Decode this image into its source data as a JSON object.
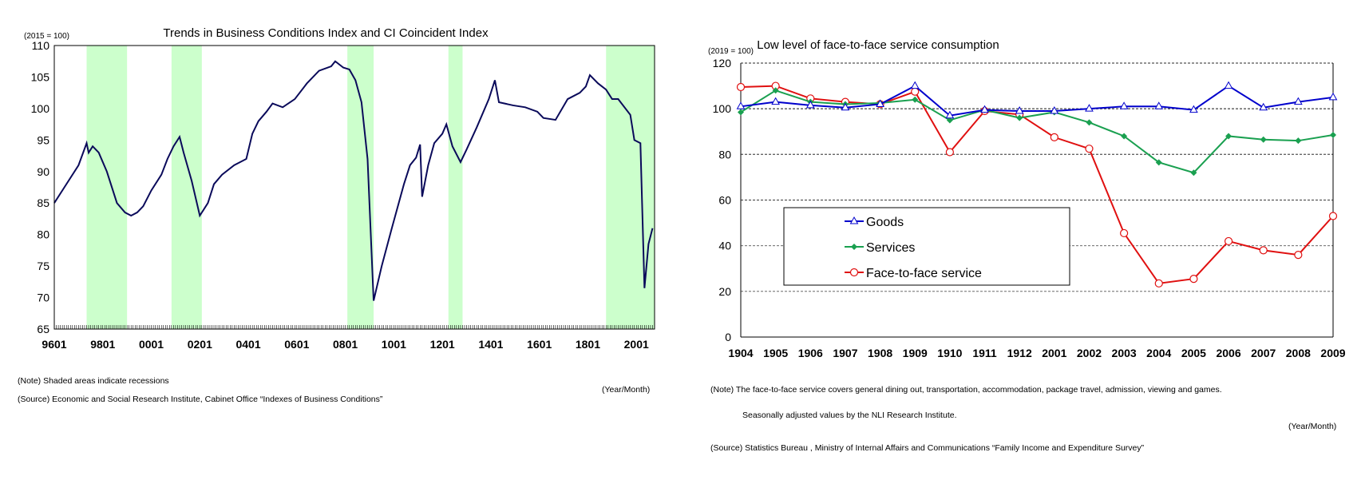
{
  "chart_data": [
    {
      "type": "line",
      "title": "Trends in Business Conditions Index and CI Coincident Index",
      "unit_label": "(2015 = 100)",
      "xlabel": "(Year/Month)",
      "ylim": [
        65,
        110
      ],
      "yticks": [
        65,
        70,
        75,
        80,
        85,
        90,
        95,
        100,
        105,
        110
      ],
      "xticks": [
        "9601",
        "9801",
        "0001",
        "0201",
        "0401",
        "0601",
        "0801",
        "1001",
        "1201",
        "1401",
        "1601",
        "1801",
        "2001"
      ],
      "x_range": [
        "1996-01",
        "2020-10"
      ],
      "line_color": "#0a0a5a",
      "shade_color": "#ccffcc",
      "recessions": [
        [
          "1997-05",
          "1999-01"
        ],
        [
          "2000-11",
          "2002-02"
        ],
        [
          "2008-02",
          "2009-03"
        ],
        [
          "2012-04",
          "2012-11"
        ],
        [
          "2018-10",
          "2020-10"
        ]
      ],
      "series": [
        {
          "points": [
            [
              "1996-01",
              85
            ],
            [
              "1996-06",
              87.5
            ],
            [
              "1997-01",
              91
            ],
            [
              "1997-05",
              94.5
            ],
            [
              "1997-06",
              93
            ],
            [
              "1997-08",
              94
            ],
            [
              "1997-11",
              93
            ],
            [
              "1998-03",
              90
            ],
            [
              "1998-08",
              85
            ],
            [
              "1998-12",
              83.5
            ],
            [
              "1999-03",
              83
            ],
            [
              "1999-06",
              83.5
            ],
            [
              "1999-09",
              84.5
            ],
            [
              "2000-01",
              87
            ],
            [
              "2000-06",
              89.5
            ],
            [
              "2000-09",
              92
            ],
            [
              "2000-12",
              94
            ],
            [
              "2001-03",
              95.5
            ],
            [
              "2001-05",
              93
            ],
            [
              "2001-09",
              88.5
            ],
            [
              "2002-01",
              83
            ],
            [
              "2002-05",
              85
            ],
            [
              "2002-08",
              88
            ],
            [
              "2002-12",
              89.5
            ],
            [
              "2003-06",
              91
            ],
            [
              "2003-12",
              92
            ],
            [
              "2004-03",
              96
            ],
            [
              "2004-06",
              98
            ],
            [
              "2004-10",
              99.5
            ],
            [
              "2005-01",
              100.8
            ],
            [
              "2005-06",
              100.2
            ],
            [
              "2005-12",
              101.5
            ],
            [
              "2006-06",
              104
            ],
            [
              "2006-12",
              106
            ],
            [
              "2007-06",
              106.7
            ],
            [
              "2007-08",
              107.5
            ],
            [
              "2007-12",
              106.5
            ],
            [
              "2008-03",
              106.2
            ],
            [
              "2008-06",
              104.5
            ],
            [
              "2008-09",
              101
            ],
            [
              "2008-12",
              92
            ],
            [
              "2009-03",
              69.5
            ],
            [
              "2009-07",
              75
            ],
            [
              "2009-12",
              81
            ],
            [
              "2010-06",
              88
            ],
            [
              "2010-09",
              91
            ],
            [
              "2010-12",
              92.2
            ],
            [
              "2011-02",
              94.3
            ],
            [
              "2011-03",
              86
            ],
            [
              "2011-06",
              91
            ],
            [
              "2011-09",
              94.5
            ],
            [
              "2012-01",
              96
            ],
            [
              "2012-03",
              97.5
            ],
            [
              "2012-06",
              94
            ],
            [
              "2012-10",
              91.5
            ],
            [
              "2013-01",
              93.5
            ],
            [
              "2013-06",
              97
            ],
            [
              "2013-12",
              101.5
            ],
            [
              "2014-03",
              104.5
            ],
            [
              "2014-05",
              101
            ],
            [
              "2014-12",
              100.5
            ],
            [
              "2015-06",
              100.2
            ],
            [
              "2015-12",
              99.5
            ],
            [
              "2016-03",
              98.5
            ],
            [
              "2016-09",
              98.2
            ],
            [
              "2017-03",
              101.5
            ],
            [
              "2017-09",
              102.5
            ],
            [
              "2017-12",
              103.5
            ],
            [
              "2018-02",
              105.3
            ],
            [
              "2018-06",
              104
            ],
            [
              "2018-10",
              103
            ],
            [
              "2019-01",
              101.5
            ],
            [
              "2019-04",
              101.5
            ],
            [
              "2019-10",
              99
            ],
            [
              "2019-12",
              95
            ],
            [
              "2020-03",
              94.5
            ],
            [
              "2020-05",
              71.5
            ],
            [
              "2020-07",
              78.5
            ],
            [
              "2020-09",
              81
            ]
          ]
        }
      ],
      "notes": [
        "(Note) Shaded areas indicate recessions",
        "(Source) Economic and Social Research Institute, Cabinet Office “Indexes of Business Conditions”"
      ]
    },
    {
      "type": "line",
      "title": "Low level of face-to-face service consumption",
      "unit_label": "(2019 = 100)",
      "xlabel": "(Year/Month)",
      "ylim": [
        0,
        120
      ],
      "yticks": [
        0,
        20,
        40,
        60,
        80,
        100,
        120
      ],
      "grid": true,
      "legend": "center-left",
      "categories": [
        "1904",
        "1905",
        "1906",
        "1907",
        "1908",
        "1909",
        "1910",
        "1911",
        "1912",
        "2001",
        "2002",
        "2003",
        "2004",
        "2005",
        "2006",
        "2007",
        "2008",
        "2009"
      ],
      "series": [
        {
          "name": "Goods",
          "color": "#0000cc",
          "marker": "triangle-open",
          "values": [
            101,
            103,
            101.5,
            100.5,
            102,
            110,
            97,
            99.5,
            99,
            99,
            100,
            101,
            101,
            99.5,
            110,
            100.5,
            103,
            105
          ]
        },
        {
          "name": "Services",
          "color": "#1aa050",
          "marker": "diamond-filled",
          "values": [
            98.5,
            108,
            103,
            102,
            102.5,
            104,
            95,
            99.5,
            96,
            98.5,
            94,
            88,
            76.5,
            72,
            88,
            86.5,
            86,
            88.5
          ]
        },
        {
          "name": "Face-to-face service",
          "color": "#e01010",
          "marker": "circle-open",
          "values": [
            109.5,
            110,
            104.5,
            103,
            102,
            107.5,
            81,
            99,
            97.5,
            87.5,
            82.5,
            45.5,
            23.5,
            25.5,
            42,
            38,
            36,
            53
          ]
        }
      ],
      "notes": [
        "(Note) The face-to-face service covers general dining out, transportation, accommodation, package travel, admission, viewing and games.",
        "Seasonally adjusted values by the NLI Research Institute.",
        "(Source) Statistics Bureau , Ministry of Internal Affairs and Communications “Family Income and Expenditure Survey”"
      ]
    }
  ]
}
